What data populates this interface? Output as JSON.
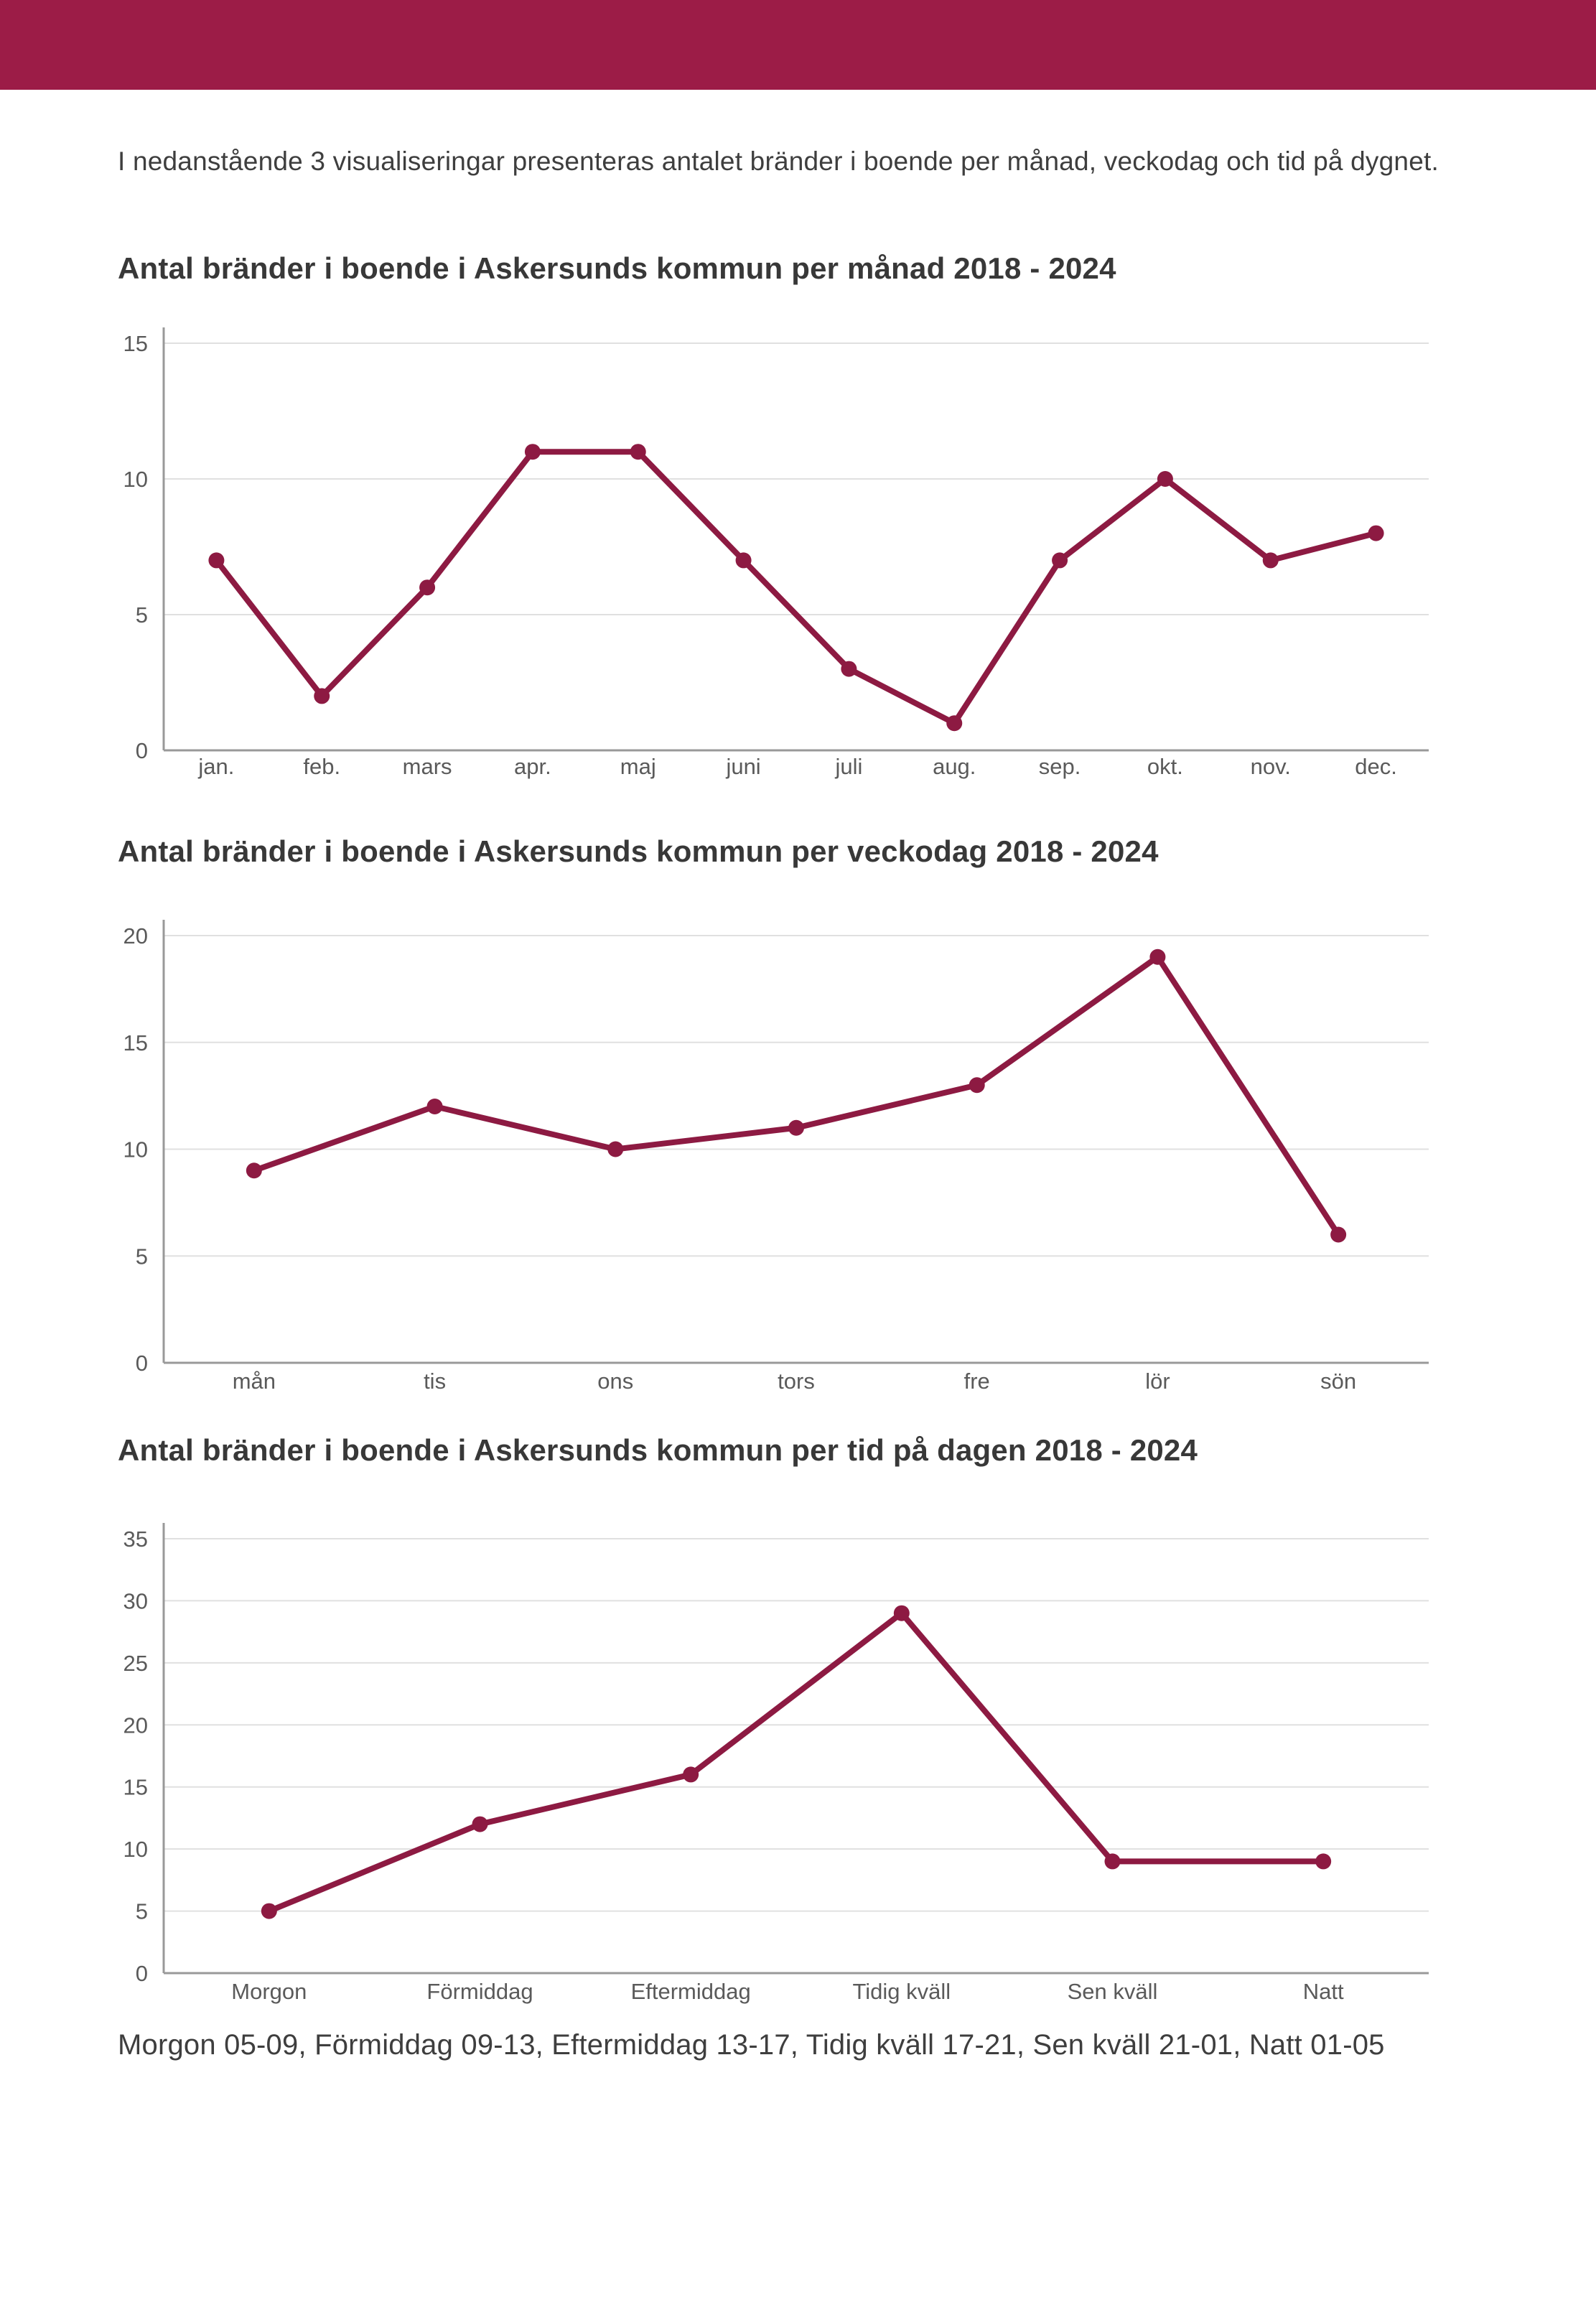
{
  "page": {
    "intro": "I nedanstående 3 visualiseringar presenteras antalet bränder i boende per månad, veckodag och tid på dygnet.",
    "footnote": "Morgon 05-09, Förmiddag 09-13, Eftermiddag 13-17, Tidig kväll 17-21, Sen kväll 21-01, Natt 01-05"
  },
  "colors": {
    "banner": "#9c1c47",
    "line": "#8d1a42",
    "marker": "#8d1a42",
    "grid": "#e0e0e0",
    "axis": "#999999",
    "tick_text": "#5a5a5a",
    "title_text": "#383838",
    "body_text": "#3e3e3e"
  },
  "chart_data": [
    {
      "type": "line",
      "title": "Antal bränder i boende i Askersunds kommun per månad 2018 - 2024",
      "categories": [
        "jan.",
        "feb.",
        "mars",
        "apr.",
        "maj",
        "juni",
        "juli",
        "aug.",
        "sep.",
        "okt.",
        "nov.",
        "dec."
      ],
      "values": [
        7,
        2,
        6,
        11,
        11,
        7,
        3,
        1,
        7,
        10,
        7,
        8
      ],
      "xlabel": "",
      "ylabel": "",
      "ylim": [
        0,
        15
      ],
      "yticks": [
        0,
        5,
        10,
        15
      ],
      "grid": true,
      "legend": "none"
    },
    {
      "type": "line",
      "title": "Antal bränder i boende i Askersunds kommun per veckodag 2018 - 2024",
      "categories": [
        "mån",
        "tis",
        "ons",
        "tors",
        "fre",
        "lör",
        "sön"
      ],
      "values": [
        9,
        12,
        10,
        11,
        13,
        19,
        6
      ],
      "xlabel": "",
      "ylabel": "",
      "ylim": [
        0,
        20
      ],
      "yticks": [
        0,
        5,
        10,
        15,
        20
      ],
      "grid": true,
      "legend": "none"
    },
    {
      "type": "line",
      "title": "Antal bränder i boende i Askersunds kommun per tid på dagen 2018 - 2024",
      "categories": [
        "Morgon",
        "Förmiddag",
        "Eftermiddag",
        "Tidig kväll",
        "Sen kväll",
        "Natt"
      ],
      "values": [
        5,
        12,
        16,
        29,
        9,
        9
      ],
      "xlabel": "",
      "ylabel": "",
      "ylim": [
        0,
        35
      ],
      "yticks": [
        0,
        5,
        10,
        15,
        20,
        25,
        30,
        35
      ],
      "grid": true,
      "legend": "none"
    }
  ]
}
